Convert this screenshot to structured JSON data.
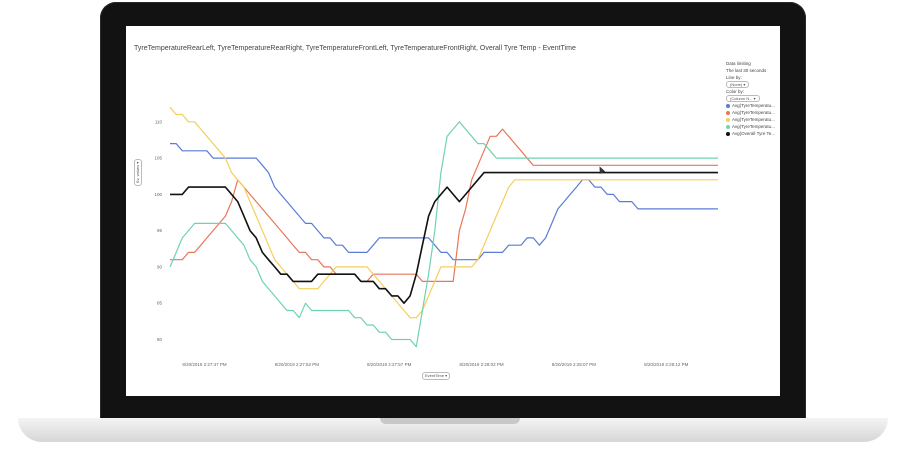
{
  "chart_data": {
    "type": "line",
    "title": "TyreTemperatureRearLeft, TyreTemperatureRearRight, TyreTemperatureFrontLeft, TyreTemperatureFrontRight, Overall Tyre Temp - EventTime",
    "ylim": [
      78,
      117
    ],
    "yticks": [
      80,
      85,
      90,
      95,
      100,
      105,
      110
    ],
    "x": [
      0,
      1,
      2,
      3,
      4,
      5,
      6,
      7,
      8,
      9,
      10,
      11,
      12,
      13,
      14,
      15,
      16,
      17,
      18,
      19,
      20,
      21,
      22,
      23,
      24,
      25,
      26,
      27,
      28,
      29,
      30,
      31,
      32,
      33,
      34,
      35,
      36,
      37,
      38,
      39,
      40,
      41,
      42,
      43,
      44,
      45,
      46,
      47,
      48,
      49,
      50,
      51,
      52,
      53,
      54,
      55,
      56,
      57,
      58,
      59,
      60,
      61,
      62,
      63,
      64,
      65,
      66,
      67,
      68,
      69,
      70,
      71,
      72,
      73,
      74,
      75,
      76,
      77,
      78,
      79,
      80,
      81,
      82,
      83,
      84,
      85,
      86,
      87,
      88,
      89
    ],
    "xticks": [
      {
        "x": 2,
        "label": "8/20/2019 2:27:47 PM"
      },
      {
        "x": 17,
        "label": "8/20/2019 2:27:52 PM"
      },
      {
        "x": 32,
        "label": "8/20/2019 2:27:57 PM"
      },
      {
        "x": 47,
        "label": "8/20/2019 2:28:02 PM"
      },
      {
        "x": 62,
        "label": "8/20/2019 2:28:07 PM"
      },
      {
        "x": 77,
        "label": "8/20/2019 2:28:12 PM"
      }
    ],
    "xlabel": "EventTime",
    "ylabel": "Ev. values",
    "series": [
      {
        "name": "Avg(TyreTemperatu...",
        "color": "#5b7bd5",
        "values": [
          107,
          107,
          106,
          106,
          106,
          106,
          106,
          105,
          105,
          105,
          105,
          105,
          105,
          105,
          105,
          104,
          103,
          101,
          100,
          99,
          98,
          97,
          96,
          96,
          95,
          94,
          94,
          93,
          93,
          92,
          92,
          92,
          92,
          93,
          94,
          94,
          94,
          94,
          94,
          94,
          94,
          94,
          94,
          93,
          92,
          92,
          91,
          91,
          91,
          91,
          91,
          92,
          92,
          92,
          92,
          93,
          93,
          93,
          94,
          94,
          93,
          94,
          96,
          98,
          99,
          100,
          101,
          102,
          102,
          101,
          101,
          100,
          100,
          99,
          99,
          99,
          98,
          98,
          98,
          98,
          98,
          98,
          98,
          98,
          98,
          98,
          98,
          98,
          98,
          98
        ]
      },
      {
        "name": "Avg(TyreTemperatu...",
        "color": "#e8775a",
        "values": [
          91,
          91,
          91,
          92,
          92,
          93,
          94,
          95,
          96,
          97,
          99,
          102,
          101,
          100,
          99,
          98,
          97,
          96,
          95,
          94,
          93,
          92,
          92,
          91,
          91,
          90,
          90,
          89,
          89,
          89,
          89,
          88,
          88,
          89,
          89,
          89,
          89,
          89,
          89,
          89,
          89,
          88,
          88,
          88,
          88,
          88,
          88,
          95,
          98,
          102,
          104,
          106,
          108,
          108,
          109,
          108,
          107,
          106,
          105,
          104,
          104,
          104,
          104,
          104,
          104,
          104,
          104,
          104,
          104,
          104,
          104,
          104,
          104,
          104,
          104,
          104,
          104,
          104,
          104,
          104,
          104,
          104,
          104,
          104,
          104,
          104,
          104,
          104,
          104,
          104
        ]
      },
      {
        "name": "Avg(TyreTemperatu...",
        "color": "#f4cf5b",
        "values": [
          112,
          111,
          111,
          110,
          110,
          109,
          108,
          107,
          106,
          105,
          103,
          102,
          101,
          99,
          97,
          95,
          93,
          91,
          90,
          89,
          88,
          87,
          87,
          87,
          87,
          88,
          89,
          90,
          90,
          90,
          90,
          90,
          90,
          89,
          88,
          87,
          86,
          85,
          84,
          83,
          83,
          84,
          86,
          88,
          90,
          90,
          90,
          90,
          90,
          90,
          91,
          93,
          95,
          97,
          99,
          101,
          102,
          102,
          102,
          102,
          102,
          102,
          102,
          102,
          102,
          102,
          102,
          102,
          102,
          102,
          102,
          102,
          102,
          102,
          102,
          102,
          102,
          102,
          102,
          102,
          102,
          102,
          102,
          102,
          102,
          102,
          102,
          102,
          102,
          102
        ]
      },
      {
        "name": "Avg(TyreTemperatu...",
        "color": "#6fd3ae",
        "values": [
          90,
          92,
          94,
          95,
          96,
          96,
          96,
          96,
          96,
          96,
          95,
          94,
          93,
          91,
          90,
          88,
          87,
          86,
          85,
          84,
          84,
          83,
          85,
          84,
          84,
          84,
          84,
          84,
          84,
          84,
          83,
          83,
          82,
          82,
          81,
          81,
          80,
          80,
          80,
          80,
          79,
          84,
          89,
          95,
          103,
          108,
          109,
          110,
          109,
          108,
          107,
          107,
          106,
          105,
          105,
          105,
          105,
          105,
          105,
          105,
          105,
          105,
          105,
          105,
          105,
          105,
          105,
          105,
          105,
          105,
          105,
          105,
          105,
          105,
          105,
          105,
          105,
          105,
          105,
          105,
          105,
          105,
          105,
          105,
          105,
          105,
          105,
          105,
          105,
          105
        ]
      },
      {
        "name": "Avg(Overall Tyre Te...",
        "color": "#111111",
        "values": [
          100,
          100,
          100,
          101,
          101,
          101,
          101,
          101,
          101,
          101,
          100,
          99,
          97,
          95,
          94,
          92,
          91,
          90,
          89,
          89,
          88,
          88,
          88,
          88,
          89,
          89,
          89,
          89,
          89,
          89,
          89,
          88,
          88,
          88,
          87,
          87,
          86,
          86,
          85,
          86,
          89,
          93,
          97,
          99,
          100,
          101,
          100,
          99,
          100,
          101,
          102,
          103,
          103,
          103,
          103,
          103,
          103,
          103,
          103,
          103,
          103,
          103,
          103,
          103,
          103,
          103,
          103,
          103,
          103,
          103,
          103,
          103,
          103,
          103,
          103,
          103,
          103,
          103,
          103,
          103,
          103,
          103,
          103,
          103,
          103,
          103,
          103,
          103,
          103,
          103
        ]
      }
    ]
  },
  "panel": {
    "data_limiting": "Data limiting",
    "data_limiting_value": "The last 30 seconds",
    "line_by": "Line by:",
    "line_by_value": "(None)",
    "color_by": "Color by:",
    "color_by_value": "(Column N..."
  }
}
